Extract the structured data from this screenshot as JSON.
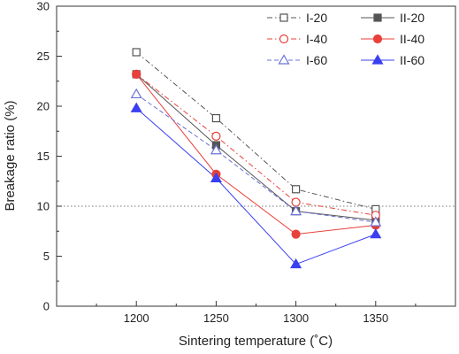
{
  "chart_data": {
    "type": "line",
    "x": [
      1200,
      1250,
      1300,
      1350
    ],
    "xlabel": "Sintering temperature (˚C)",
    "ylabel": "Breakage ratio (%)",
    "xlim": [
      1150,
      1400
    ],
    "ylim": [
      0,
      30
    ],
    "xticks": [
      1200,
      1250,
      1300,
      1350
    ],
    "yticks": [
      0,
      5,
      10,
      15,
      20,
      25,
      30
    ],
    "reference_line": 10,
    "grid": false,
    "legend_placement": "top-right",
    "series": [
      {
        "name": "I-20",
        "values": [
          25.4,
          18.8,
          11.7,
          9.7
        ],
        "color": "#555555",
        "marker": "square",
        "filled": false,
        "dash": "dashdot"
      },
      {
        "name": "II-20",
        "values": [
          23.2,
          16.1,
          9.5,
          8.6
        ],
        "color": "#555555",
        "marker": "square",
        "filled": true,
        "dash": "solid"
      },
      {
        "name": "I-40",
        "values": [
          23.2,
          17.0,
          10.4,
          9.1
        ],
        "color": "#e8403a",
        "marker": "circle",
        "filled": false,
        "dash": "dashdot"
      },
      {
        "name": "II-40",
        "values": [
          23.2,
          13.2,
          7.2,
          8.1
        ],
        "color": "#e8403a",
        "marker": "circle",
        "filled": true,
        "dash": "solid"
      },
      {
        "name": "I-60",
        "values": [
          21.2,
          15.6,
          9.5,
          8.4
        ],
        "color": "#6b73d8",
        "marker": "triangle",
        "filled": false,
        "dash": "dashed"
      },
      {
        "name": "II-60",
        "values": [
          19.8,
          12.8,
          4.2,
          7.2
        ],
        "color": "#3a3ff0",
        "marker": "triangle",
        "filled": true,
        "dash": "solid"
      }
    ]
  }
}
